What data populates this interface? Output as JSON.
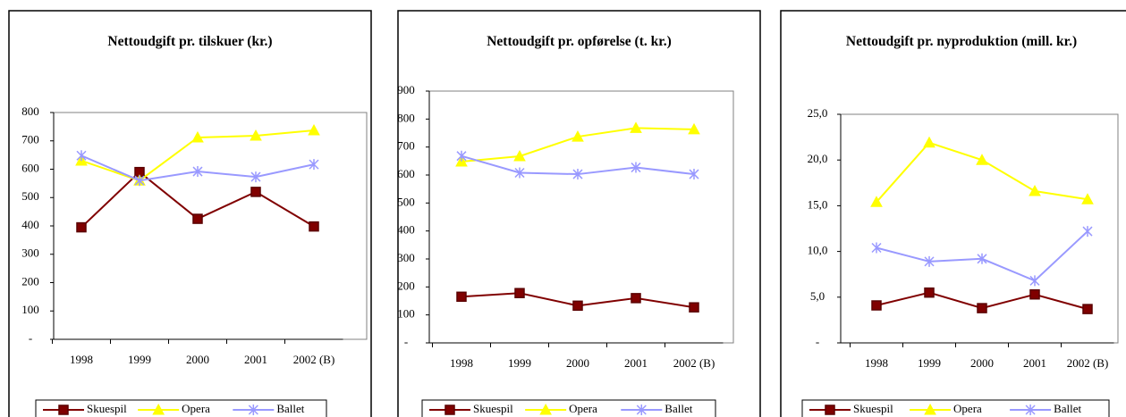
{
  "chart_data": [
    {
      "type": "line",
      "title": "Nettoudgift pr. tilskuer (kr.)",
      "categories": [
        "1998",
        "1999",
        "2000",
        "2001",
        "2002 (B)"
      ],
      "series": [
        {
          "name": "Skuespil",
          "color": "#800000",
          "values": [
            395,
            590,
            425,
            520,
            398
          ]
        },
        {
          "name": "Opera",
          "color": "#ffff00",
          "values": [
            630,
            560,
            712,
            718,
            737
          ]
        },
        {
          "name": "Ballet",
          "color": "#9999ff",
          "values": [
            648,
            560,
            592,
            573,
            617
          ]
        }
      ],
      "ylim": [
        0,
        800
      ],
      "yticks": [
        {
          "value": 0,
          "label": "-"
        },
        100,
        200,
        300,
        400,
        500,
        600,
        700,
        800
      ],
      "legend": "bottom"
    },
    {
      "type": "line",
      "title": "Nettoudgift pr. opførelse (t. kr.)",
      "categories": [
        "1998",
        "1999",
        "2000",
        "2001",
        "2002 (B)"
      ],
      "series": [
        {
          "name": "Skuespil",
          "color": "#800000",
          "values": [
            165,
            178,
            133,
            160,
            127
          ]
        },
        {
          "name": "Opera",
          "color": "#ffff00",
          "values": [
            648,
            667,
            737,
            768,
            763
          ]
        },
        {
          "name": "Ballet",
          "color": "#9999ff",
          "values": [
            668,
            608,
            603,
            627,
            603
          ]
        }
      ],
      "ylim": [
        0,
        900
      ],
      "yticks": [
        {
          "value": 0,
          "label": "-"
        },
        100,
        200,
        300,
        400,
        500,
        600,
        700,
        800,
        900
      ],
      "legend": "bottom"
    },
    {
      "type": "line",
      "title": "Nettoudgift pr. nyproduktion (mill. kr.)",
      "categories": [
        "1998",
        "1999",
        "2000",
        "2001",
        "2002 (B)"
      ],
      "series": [
        {
          "name": "Skuespil",
          "color": "#800000",
          "values": [
            4.1,
            5.5,
            3.8,
            5.3,
            3.7
          ]
        },
        {
          "name": "Opera",
          "color": "#ffff00",
          "values": [
            15.4,
            21.9,
            20.0,
            16.6,
            15.7
          ]
        },
        {
          "name": "Ballet",
          "color": "#9999ff",
          "values": [
            10.4,
            8.9,
            9.2,
            6.8,
            12.2
          ]
        }
      ],
      "ylim": [
        0,
        25
      ],
      "yticks": [
        {
          "value": 0,
          "label": "-"
        },
        {
          "value": 5,
          "label": "5,0"
        },
        {
          "value": 10,
          "label": "10,0"
        },
        {
          "value": 15,
          "label": "15,0"
        },
        {
          "value": 20,
          "label": "20,0"
        },
        {
          "value": 25,
          "label": "25,0"
        }
      ],
      "legend": "bottom"
    }
  ]
}
